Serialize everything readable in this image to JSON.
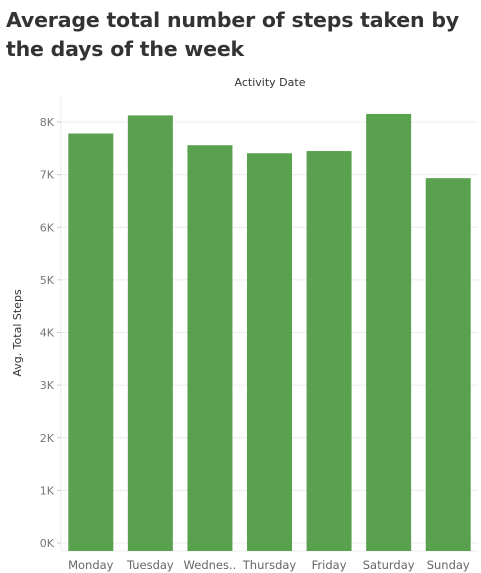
{
  "title": "Average total number of steps taken by the days of the week",
  "colors": {
    "bar": "#59a14f",
    "grid": "#ececec"
  },
  "chart_data": {
    "type": "bar",
    "title": "Average total number of steps taken by the days of the week",
    "xlabel": "Activity Date",
    "ylabel": "Avg. Total Steps",
    "categories": [
      "Monday",
      "Tuesday",
      "Wednesday",
      "Thursday",
      "Friday",
      "Saturday",
      "Sunday"
    ],
    "category_labels": [
      "Monday",
      "Tuesday",
      "Wednes..",
      "Thursday",
      "Friday",
      "Saturday",
      "Sunday"
    ],
    "values": [
      7781,
      8125,
      7559,
      7406,
      7448,
      8153,
      6933
    ],
    "ylim": [
      0,
      8500
    ],
    "yticks": [
      0,
      1000,
      2000,
      3000,
      4000,
      5000,
      6000,
      7000,
      8000
    ],
    "ytick_labels": [
      "0K",
      "1K",
      "2K",
      "3K",
      "4K",
      "5K",
      "6K",
      "7K",
      "8K"
    ],
    "grid": true,
    "legend": "none"
  }
}
